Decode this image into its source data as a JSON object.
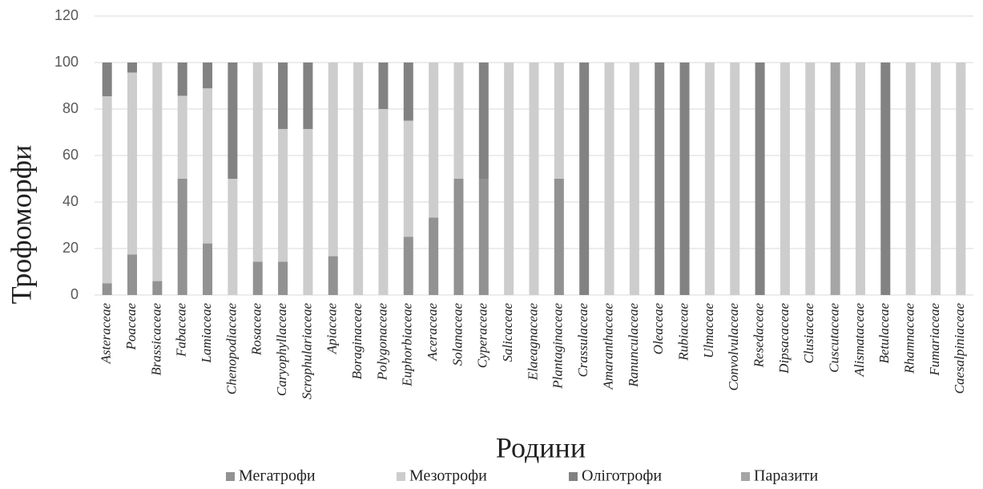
{
  "chart_data": {
    "type": "stacked_bar",
    "x_label": "Родини",
    "y_label": "Трофоморфи",
    "categories": [
      "Asteraceae",
      "Poaceae",
      "Brassicaceae",
      "Fabaceae",
      "Lamiaceae",
      "Chenopodiaceae",
      "Rosaceae",
      "Caryophyllaceae",
      "Scrophulariaceae",
      "Apiaceae",
      "Boraginaceae",
      "Polygonaceae",
      "Euphorbiaceae",
      "Aceraceae",
      "Solanaceae",
      "Cyperaceae",
      "Salicaceae",
      "Elaeagnaceae",
      "Plantaginaceae",
      "Crassulaceae",
      "Amaranthaceae",
      "Ranunculaceae",
      "Oleaceae",
      "Rubiaceae",
      "Ulmaceae",
      "Convolvulaceae",
      "Resedaceae",
      "Dipsacaceae",
      "Clusiaceae",
      "Cuscutaceae",
      "Alismataceae",
      "Betulaceae",
      "Rhamnaceae",
      "Fumariaceae",
      "Caesalpiniaceae"
    ],
    "series": [
      {
        "name": "Мегатрофи",
        "color": "#929292",
        "values": [
          5,
          17.4,
          6,
          50,
          22.2,
          0,
          14.3,
          14.3,
          0,
          16.7,
          0,
          0,
          25,
          33.3,
          50,
          50,
          0,
          0,
          50,
          0,
          0,
          0,
          0,
          0,
          0,
          0,
          0,
          0,
          0,
          0,
          0,
          0,
          0,
          0,
          0
        ]
      },
      {
        "name": "Мезотрофи",
        "color": "#cdcdcd",
        "values": [
          80.5,
          78.3,
          94,
          35.7,
          66.7,
          50,
          85.7,
          57.1,
          71.4,
          83.3,
          100,
          80,
          50,
          66.7,
          50,
          0,
          100,
          100,
          50,
          0,
          100,
          100,
          0,
          0,
          100,
          100,
          0,
          100,
          100,
          0,
          100,
          0,
          100,
          100,
          100
        ]
      },
      {
        "name": "Оліготрофи",
        "color": "#828282",
        "values": [
          14.5,
          4.3,
          0,
          14.3,
          11.1,
          50,
          0,
          28.6,
          28.6,
          0,
          0,
          20,
          25,
          0,
          0,
          50,
          0,
          0,
          0,
          100,
          0,
          0,
          100,
          100,
          0,
          0,
          100,
          0,
          0,
          0,
          0,
          100,
          0,
          0,
          0
        ]
      },
      {
        "name": "Паразити",
        "color": "#a5a5a5",
        "values": [
          0,
          0,
          0,
          0,
          0,
          0,
          0,
          0,
          0,
          0,
          0,
          0,
          0,
          0,
          0,
          0,
          0,
          0,
          0,
          0,
          0,
          0,
          0,
          0,
          0,
          0,
          0,
          0,
          0,
          100,
          0,
          0,
          0,
          0,
          0
        ]
      }
    ],
    "ylim": [
      0,
      120
    ],
    "yticks": [
      0,
      20,
      40,
      60,
      80,
      100,
      120
    ],
    "grid": true
  }
}
